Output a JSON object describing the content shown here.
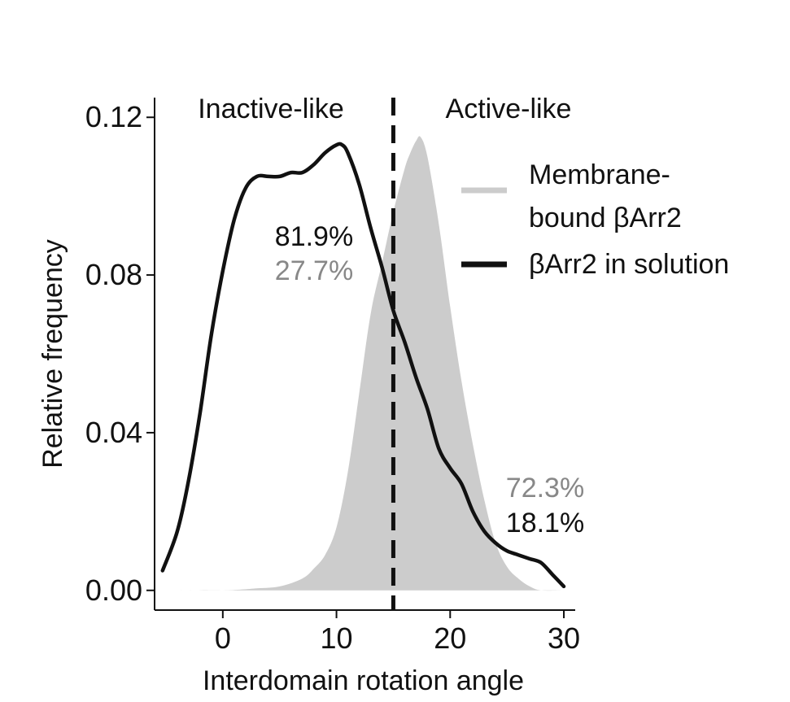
{
  "chart_data": {
    "type": "area",
    "xlabel": "Interdomain rotation angle",
    "ylabel": "Relative frequency",
    "xlim": [
      -6,
      31
    ],
    "ylim": [
      -0.005,
      0.125
    ],
    "xticks": [
      0,
      10,
      20,
      30
    ],
    "xtick_labels": [
      "0",
      "10",
      "20",
      "30"
    ],
    "yticks": [
      0.0,
      0.04,
      0.08,
      0.12
    ],
    "ytick_labels": [
      "0.00",
      "0.04",
      "0.08",
      "0.12"
    ],
    "threshold_x": 15,
    "region_labels": {
      "left": "Inactive-like",
      "right": "Active-like"
    },
    "grid": false,
    "legend_position": "right",
    "series": [
      {
        "name": "Membrane-bound βArr2",
        "legend_lines": [
          "Membrane-",
          "bound βArr2"
        ],
        "style": "filled",
        "color": "#cccccc",
        "x": [
          -5,
          0,
          3,
          5,
          7,
          8,
          9,
          10,
          11,
          12,
          13,
          14,
          15,
          16,
          16.5,
          17,
          17.4,
          18,
          19,
          20,
          21,
          22,
          23,
          24,
          25,
          26,
          27,
          28,
          30
        ],
        "y": [
          0.0,
          0.0,
          0.0005,
          0.001,
          0.003,
          0.0055,
          0.009,
          0.016,
          0.03,
          0.05,
          0.07,
          0.083,
          0.096,
          0.107,
          0.111,
          0.114,
          0.115,
          0.11,
          0.093,
          0.072,
          0.053,
          0.037,
          0.023,
          0.012,
          0.006,
          0.003,
          0.001,
          0.0,
          0.0
        ],
        "region_percent": {
          "left": "27.7%",
          "right": "72.3%"
        }
      },
      {
        "name": "βArr2 in solution",
        "legend_lines": [
          "βArr2 in solution"
        ],
        "style": "line",
        "color": "#111111",
        "x": [
          -5.3,
          -4,
          -3,
          -2,
          -1,
          0,
          1,
          2,
          3,
          4,
          5,
          6,
          7,
          8,
          9,
          10,
          10.5,
          11,
          12,
          13,
          14,
          15,
          16,
          17,
          18,
          19,
          20,
          21,
          22,
          23,
          24,
          25,
          26,
          27,
          28,
          29,
          30
        ],
        "y": [
          0.005,
          0.015,
          0.028,
          0.045,
          0.065,
          0.081,
          0.094,
          0.102,
          0.105,
          0.105,
          0.105,
          0.106,
          0.106,
          0.108,
          0.111,
          0.113,
          0.113,
          0.111,
          0.103,
          0.092,
          0.082,
          0.071,
          0.063,
          0.054,
          0.046,
          0.036,
          0.031,
          0.027,
          0.02,
          0.015,
          0.012,
          0.01,
          0.009,
          0.008,
          0.007,
          0.004,
          0.001
        ],
        "region_percent": {
          "left": "81.9%",
          "right": "18.1%"
        }
      }
    ]
  },
  "colors": {
    "axis": "#111111",
    "membrane_fill": "#cccccc",
    "membrane_text": "#888888",
    "solution_line": "#111111",
    "threshold_line": "#111111"
  }
}
